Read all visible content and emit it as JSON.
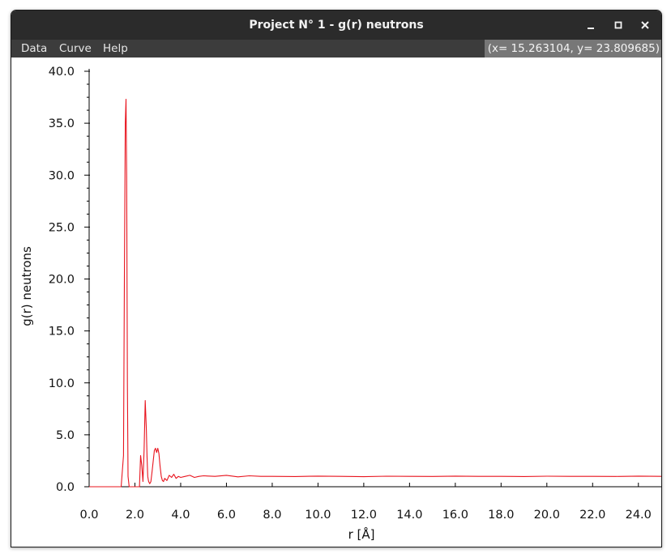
{
  "window": {
    "title": "Project N° 1 - g(r) neutrons"
  },
  "menu": {
    "items": [
      "Data",
      "Curve",
      "Help"
    ],
    "coords": "(x= 15.263104, y= 23.809685)"
  },
  "colors": {
    "titlebar": "#2b2b2b",
    "menubar": "#3c3c3c",
    "curve": "#e8141e"
  },
  "chart_data": {
    "type": "line",
    "title": "",
    "xlabel": "r [Å]",
    "ylabel": "g(r) neutrons",
    "xlim": [
      0,
      25
    ],
    "ylim": [
      0,
      40
    ],
    "x_ticks": [
      "0.0",
      "2.0",
      "4.0",
      "6.0",
      "8.0",
      "10.0",
      "12.0",
      "14.0",
      "16.0",
      "18.0",
      "20.0",
      "22.0",
      "24.0"
    ],
    "y_ticks": [
      "0.0",
      "5.0",
      "10.0",
      "15.0",
      "20.0",
      "25.0",
      "30.0",
      "35.0",
      "40.0"
    ],
    "grid": false,
    "series": [
      {
        "x": [
          0.0,
          1.4,
          1.5,
          1.54,
          1.58,
          1.61,
          1.64,
          1.67,
          1.7,
          1.75,
          1.8,
          1.9,
          2.0,
          2.1,
          2.2,
          2.25,
          2.3,
          2.35,
          2.4,
          2.45,
          2.5,
          2.53,
          2.56,
          2.6,
          2.65,
          2.7,
          2.75,
          2.8,
          2.85,
          2.9,
          2.95,
          3.0,
          3.05,
          3.1,
          3.15,
          3.2,
          3.25,
          3.3,
          3.4,
          3.5,
          3.6,
          3.7,
          3.8,
          3.9,
          4.0,
          4.2,
          4.4,
          4.6,
          4.8,
          5.0,
          5.5,
          6.0,
          6.5,
          7.0,
          7.5,
          8.0,
          9.0,
          10.0,
          11.0,
          12.0,
          13.0,
          14.0,
          15.0,
          16.0,
          17.0,
          18.0,
          19.0,
          20.0,
          21.0,
          22.0,
          23.0,
          24.0,
          25.0
        ],
        "y": [
          0.0,
          0.0,
          3.0,
          20.0,
          35.0,
          37.3,
          30.0,
          10.0,
          1.0,
          0.0,
          0.0,
          0.0,
          0.0,
          0.0,
          0.0,
          3.0,
          2.0,
          0.5,
          3.5,
          8.3,
          5.5,
          3.0,
          1.0,
          0.5,
          0.3,
          0.5,
          1.5,
          2.5,
          3.5,
          3.7,
          3.3,
          3.7,
          3.2,
          2.0,
          1.0,
          0.6,
          0.5,
          0.8,
          0.6,
          1.1,
          0.9,
          1.2,
          0.8,
          1.0,
          0.9,
          1.0,
          1.1,
          0.9,
          1.0,
          1.05,
          1.0,
          1.1,
          0.95,
          1.05,
          1.0,
          1.0,
          0.98,
          1.02,
          1.0,
          0.97,
          1.01,
          1.0,
          0.99,
          1.02,
          1.0,
          1.0,
          0.98,
          1.01,
          1.0,
          1.0,
          0.99,
          1.02,
          1.0
        ]
      }
    ]
  }
}
